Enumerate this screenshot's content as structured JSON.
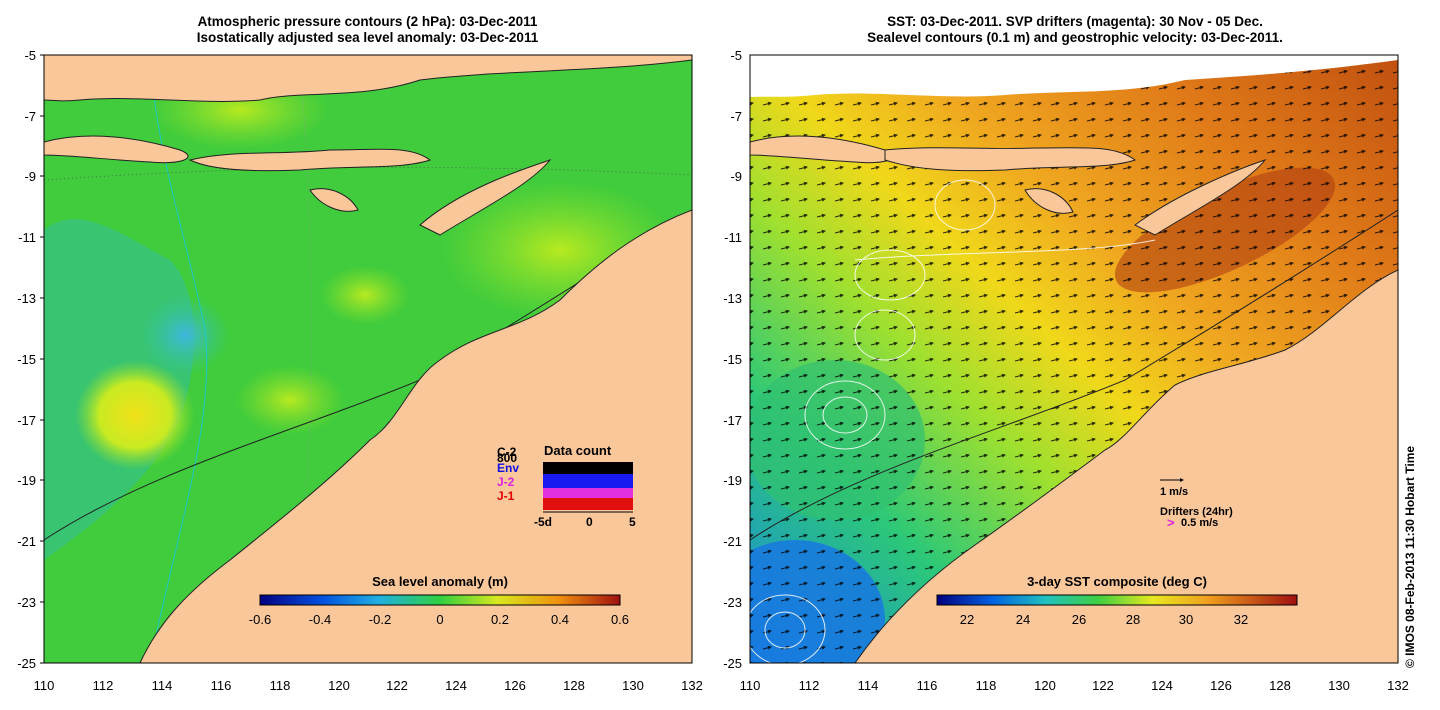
{
  "left_panel": {
    "title_line1": "Atmospheric pressure contours (2 hPa): 03-Dec-2011",
    "title_line2": "Isostatically adjusted sea level anomaly: 03-Dec-2011",
    "colorbar_label": "Sea level anomaly (m)",
    "colorbar_ticks": [
      "-0.6",
      "-0.4",
      "-0.2",
      "0",
      "0.2",
      "0.4",
      "0.6"
    ],
    "inset": {
      "title": "Data count",
      "legend": [
        {
          "label": "C-2",
          "color": "#000000"
        },
        {
          "label": "800",
          "color": "#000000"
        },
        {
          "label": "Env",
          "color": "#1010e0"
        },
        {
          "label": "J-2",
          "color": "#e020e0"
        },
        {
          "label": "J-1",
          "color": "#e00000"
        }
      ],
      "x_ticks": [
        "-5d",
        "0",
        "5"
      ]
    }
  },
  "right_panel": {
    "title_line1": "SST: 03-Dec-2011. SVP drifters (magenta): 30 Nov - 05 Dec.",
    "title_line2": "Sealevel contours (0.1 m) and geostrophic velocity: 03-Dec-2011.",
    "colorbar_label": "3-day SST composite (deg C)",
    "colorbar_ticks": [
      "22",
      "24",
      "26",
      "28",
      "30",
      "32"
    ],
    "scale_arrow_label": "1 m/s",
    "drifters_label": "Drifters (24hr)",
    "drifter_arrow_glyph": ">",
    "drifter_speed_label": "0.5 m/s"
  },
  "axes": {
    "lat_ticks": [
      "-5",
      "-7",
      "-9",
      "-11",
      "-13",
      "-15",
      "-17",
      "-19",
      "-21",
      "-23",
      "-25"
    ],
    "lon_ticks": [
      "110",
      "112",
      "114",
      "116",
      "118",
      "120",
      "122",
      "124",
      "126",
      "128",
      "130",
      "132"
    ]
  },
  "credit": "© IMOS 08-Feb-2013 11:30 Hobart Time",
  "colors": {
    "land": "#f9c79a",
    "ocean_green": "#3ed43a",
    "sst_orange": "#e88a1e"
  }
}
